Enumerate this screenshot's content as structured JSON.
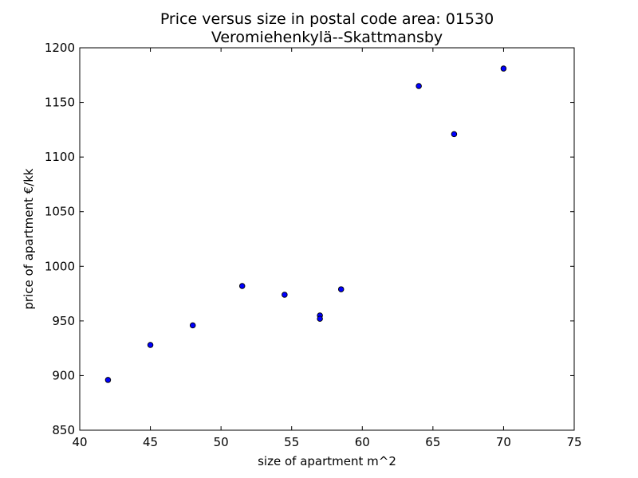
{
  "chart_data": {
    "type": "scatter",
    "title": "Price versus size in postal code area: 01530",
    "subtitle": "Veromiehenkylä--Skattmansby",
    "xlabel": "size of apartment m^2",
    "ylabel": "price of apartment €/kk",
    "xlim": [
      40,
      75
    ],
    "ylim": [
      850,
      1200
    ],
    "xticks": [
      40,
      45,
      50,
      55,
      60,
      65,
      70,
      75
    ],
    "yticks": [
      850,
      900,
      950,
      1000,
      1050,
      1100,
      1150,
      1200
    ],
    "grid": false,
    "marker_color": "#0000ff",
    "marker_edge_color": "#000000",
    "points": [
      {
        "x": 42,
        "y": 896
      },
      {
        "x": 45,
        "y": 928
      },
      {
        "x": 48,
        "y": 946
      },
      {
        "x": 51.5,
        "y": 982
      },
      {
        "x": 54.5,
        "y": 974
      },
      {
        "x": 57,
        "y": 955
      },
      {
        "x": 57,
        "y": 952
      },
      {
        "x": 58.5,
        "y": 979
      },
      {
        "x": 64,
        "y": 1165
      },
      {
        "x": 66.5,
        "y": 1121
      },
      {
        "x": 70,
        "y": 1181
      }
    ]
  }
}
